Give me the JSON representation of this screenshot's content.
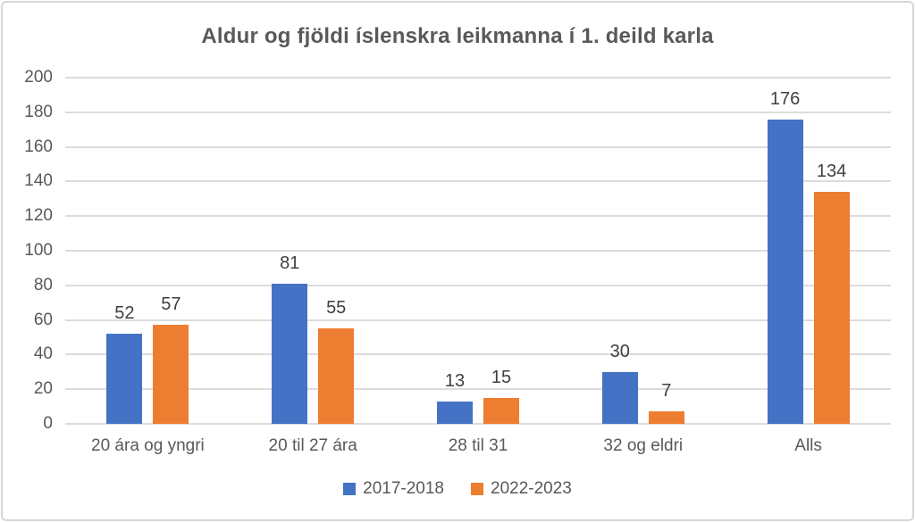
{
  "chart_data": {
    "type": "bar",
    "title": "Aldur og fjöldi íslenskra leikmanna í 1. deild karla",
    "categories": [
      "20 ára og yngri",
      "20 til 27 ára",
      "28 til 31",
      "32 og eldri",
      "Alls"
    ],
    "series": [
      {
        "name": "2017-2018",
        "color": "#4472C4",
        "values": [
          52,
          81,
          13,
          30,
          176
        ]
      },
      {
        "name": "2022-2023",
        "color": "#ED7D31",
        "values": [
          57,
          55,
          15,
          7,
          134
        ]
      }
    ],
    "xlabel": "",
    "ylabel": "",
    "ylim": [
      0,
      200
    ],
    "yticks": [
      0,
      20,
      40,
      60,
      80,
      100,
      120,
      140,
      160,
      180,
      200
    ],
    "grid": true,
    "data_labels": true,
    "legend_position": "bottom"
  },
  "colors": {
    "series_2017_2018": "#4472C4",
    "series_2022_2023": "#ED7D31",
    "title_text": "#595959",
    "axis_text": "#595959",
    "data_label_text": "#3F3F3F",
    "gridline": "#DCDCDC",
    "frame_border": "#D6D6D6",
    "background": "#FFFFFF"
  }
}
